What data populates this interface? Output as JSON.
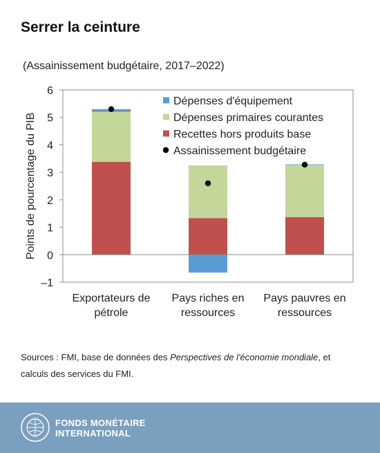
{
  "title": "Serrer la ceinture",
  "subtitle": "(Assainissement budgétaire, 2017–2022)",
  "source": {
    "prefix": "Sources : FMI, base de données des ",
    "italic": "Perspectives de l'économie mondiale",
    "suffix": ", et calculs des services du FMI."
  },
  "footer": {
    "line1": "FONDS MONÉTAIRE",
    "line2": "INTERNATIONAL",
    "seal_text": "FONDS MONÉTAIRE INTERNATIONAL"
  },
  "colors": {
    "capital": "#5b9bd5",
    "primary": "#c4d79b",
    "revenue": "#c0504d",
    "consolidation": "#000000",
    "footer": "#7b9fbf"
  },
  "chart_data": {
    "type": "bar",
    "stacked": true,
    "title": "Serrer la ceinture",
    "subtitle": "(Assainissement budgétaire, 2017–2022)",
    "ylabel": "Points de pourcentage du PIB",
    "xlabel": "",
    "ylim": [
      -1,
      6
    ],
    "yticks": [
      -1,
      0,
      1,
      2,
      3,
      4,
      5,
      6
    ],
    "ytick_labels": [
      "–1",
      "0",
      "1",
      "2",
      "3",
      "4",
      "5",
      "6"
    ],
    "categories": [
      [
        "Exportateurs de",
        "pétrole"
      ],
      [
        "Pays riches en",
        "ressources"
      ],
      [
        "Pays pauvres en",
        "ressources"
      ]
    ],
    "series": [
      {
        "name": "Recettes hors produits base",
        "key": "revenue",
        "values": [
          3.38,
          1.33,
          1.37
        ]
      },
      {
        "name": "Dépenses primaires courantes",
        "key": "primary",
        "values": [
          1.82,
          1.92,
          1.9
        ]
      },
      {
        "name": "Dépenses d'équipement",
        "key": "capital",
        "values": [
          0.1,
          -0.65,
          0.02
        ]
      }
    ],
    "markers": {
      "name": "Assainissement budgétaire",
      "key": "consolidation",
      "values": [
        5.3,
        2.6,
        3.28
      ]
    },
    "legend_order": [
      "capital",
      "primary",
      "revenue",
      "consolidation"
    ],
    "legend": "top-right",
    "grid": false
  }
}
